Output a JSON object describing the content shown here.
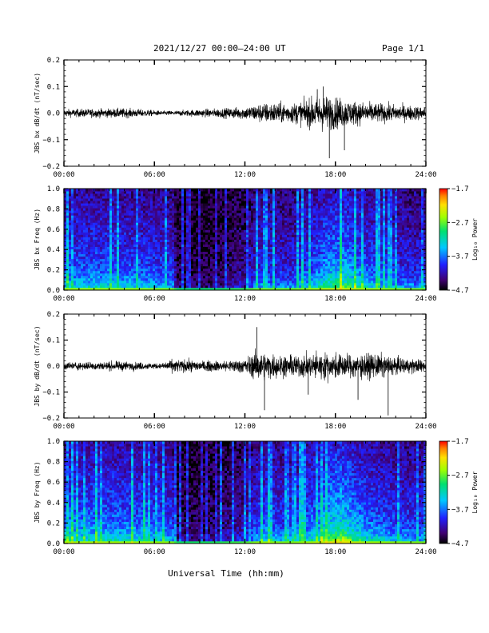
{
  "header": {
    "title": "2021/12/27  00:00–24:00 UT",
    "page": "Page 1/1"
  },
  "chart_data": [
    {
      "type": "line",
      "ylabel": "JBS bx dB/dt (nT/sec)",
      "xlim": [
        0,
        24
      ],
      "ylim": [
        -0.2,
        0.2
      ],
      "yticks": [
        "0.2",
        "0.1",
        "0.0",
        "−0.1",
        "−0.2"
      ],
      "xticks": [
        "00:00",
        "06:00",
        "12:00",
        "18:00",
        "24:00"
      ],
      "series": [
        {
          "amplitude_envelope": [
            [
              0,
              0.018
            ],
            [
              2,
              0.02
            ],
            [
              4,
              0.022
            ],
            [
              5.5,
              0.016
            ],
            [
              6.5,
              0.01
            ],
            [
              7.5,
              0.012
            ],
            [
              9,
              0.018
            ],
            [
              10.5,
              0.022
            ],
            [
              12,
              0.03
            ],
            [
              13,
              0.045
            ],
            [
              14,
              0.05
            ],
            [
              15,
              0.045
            ],
            [
              16,
              0.06
            ],
            [
              17,
              0.085
            ],
            [
              18,
              0.075
            ],
            [
              19,
              0.06
            ],
            [
              20,
              0.05
            ],
            [
              21,
              0.045
            ],
            [
              22,
              0.04
            ],
            [
              23,
              0.035
            ],
            [
              24,
              0.03
            ]
          ],
          "spikes": [
            [
              17.6,
              -0.17
            ],
            [
              17.2,
              0.1
            ],
            [
              18.6,
              -0.14
            ],
            [
              16.8,
              0.09
            ]
          ]
        }
      ]
    },
    {
      "type": "heatmap",
      "ylabel": "JBS bx Freq (Hz)",
      "xlim": [
        0,
        24
      ],
      "ylim": [
        0,
        1
      ],
      "yticks": [
        "1.0",
        "0.8",
        "0.6",
        "0.4",
        "0.2",
        "0.0"
      ],
      "xticks": [
        "00:00",
        "06:00",
        "12:00",
        "18:00",
        "24:00"
      ],
      "colorbar": {
        "label": "Log₁₀ Power",
        "range": [
          -4.7,
          -1.7
        ],
        "ticks": [
          "−1.7",
          "−2.7",
          "−3.7",
          "−4.7"
        ]
      },
      "activity_profile": [
        [
          0,
          0.55
        ],
        [
          3,
          0.55
        ],
        [
          6,
          0.5
        ],
        [
          7.2,
          0.45
        ],
        [
          7.5,
          0.12
        ],
        [
          9,
          0.1
        ],
        [
          10.5,
          0.15
        ],
        [
          12,
          0.25
        ],
        [
          13,
          0.45
        ],
        [
          15,
          0.4
        ],
        [
          16.5,
          0.55
        ],
        [
          17.5,
          0.7
        ],
        [
          18.5,
          0.75
        ],
        [
          20,
          0.55
        ],
        [
          22,
          0.45
        ],
        [
          24,
          0.4
        ]
      ]
    },
    {
      "type": "line",
      "ylabel": "JBS by dB/dt (nT/sec)",
      "xlim": [
        0,
        24
      ],
      "ylim": [
        -0.2,
        0.2
      ],
      "yticks": [
        "0.2",
        "0.1",
        "0.0",
        "−0.1",
        "−0.2"
      ],
      "xticks": [
        "00:00",
        "06:00",
        "12:00",
        "18:00",
        "24:00"
      ],
      "series": [
        {
          "amplitude_envelope": [
            [
              0,
              0.018
            ],
            [
              2,
              0.02
            ],
            [
              4,
              0.022
            ],
            [
              5.5,
              0.016
            ],
            [
              6.5,
              0.012
            ],
            [
              7,
              0.03
            ],
            [
              8,
              0.03
            ],
            [
              9,
              0.025
            ],
            [
              10.5,
              0.025
            ],
            [
              12,
              0.035
            ],
            [
              12.8,
              0.07
            ],
            [
              13.5,
              0.06
            ],
            [
              15,
              0.05
            ],
            [
              16,
              0.055
            ],
            [
              17,
              0.065
            ],
            [
              18,
              0.06
            ],
            [
              19,
              0.055
            ],
            [
              20,
              0.06
            ],
            [
              21,
              0.055
            ],
            [
              22,
              0.04
            ],
            [
              24,
              0.03
            ]
          ],
          "spikes": [
            [
              12.8,
              0.15
            ],
            [
              13.3,
              -0.17
            ],
            [
              21.5,
              -0.19
            ],
            [
              19.5,
              -0.13
            ],
            [
              16.2,
              -0.11
            ]
          ]
        }
      ]
    },
    {
      "type": "heatmap",
      "ylabel": "JBS by Freq (Hz)",
      "xlim": [
        0,
        24
      ],
      "ylim": [
        0,
        1
      ],
      "yticks": [
        "1.0",
        "0.8",
        "0.6",
        "0.4",
        "0.2",
        "0.0"
      ],
      "xticks": [
        "00:00",
        "06:00",
        "12:00",
        "18:00",
        "24:00"
      ],
      "colorbar": {
        "label": "Log₁₀ Power",
        "range": [
          -4.7,
          -1.7
        ],
        "ticks": [
          "−1.7",
          "−2.7",
          "−3.7",
          "−4.7"
        ]
      },
      "activity_profile": [
        [
          0,
          0.6
        ],
        [
          3,
          0.6
        ],
        [
          6,
          0.55
        ],
        [
          7.2,
          0.5
        ],
        [
          7.5,
          0.15
        ],
        [
          9,
          0.15
        ],
        [
          10.5,
          0.2
        ],
        [
          12,
          0.3
        ],
        [
          13,
          0.55
        ],
        [
          15,
          0.45
        ],
        [
          16.5,
          0.6
        ],
        [
          17.5,
          0.8
        ],
        [
          18.5,
          0.85
        ],
        [
          20,
          0.6
        ],
        [
          22,
          0.5
        ],
        [
          24,
          0.45
        ]
      ]
    }
  ],
  "xlabel": "Universal Time (hh:mm)"
}
